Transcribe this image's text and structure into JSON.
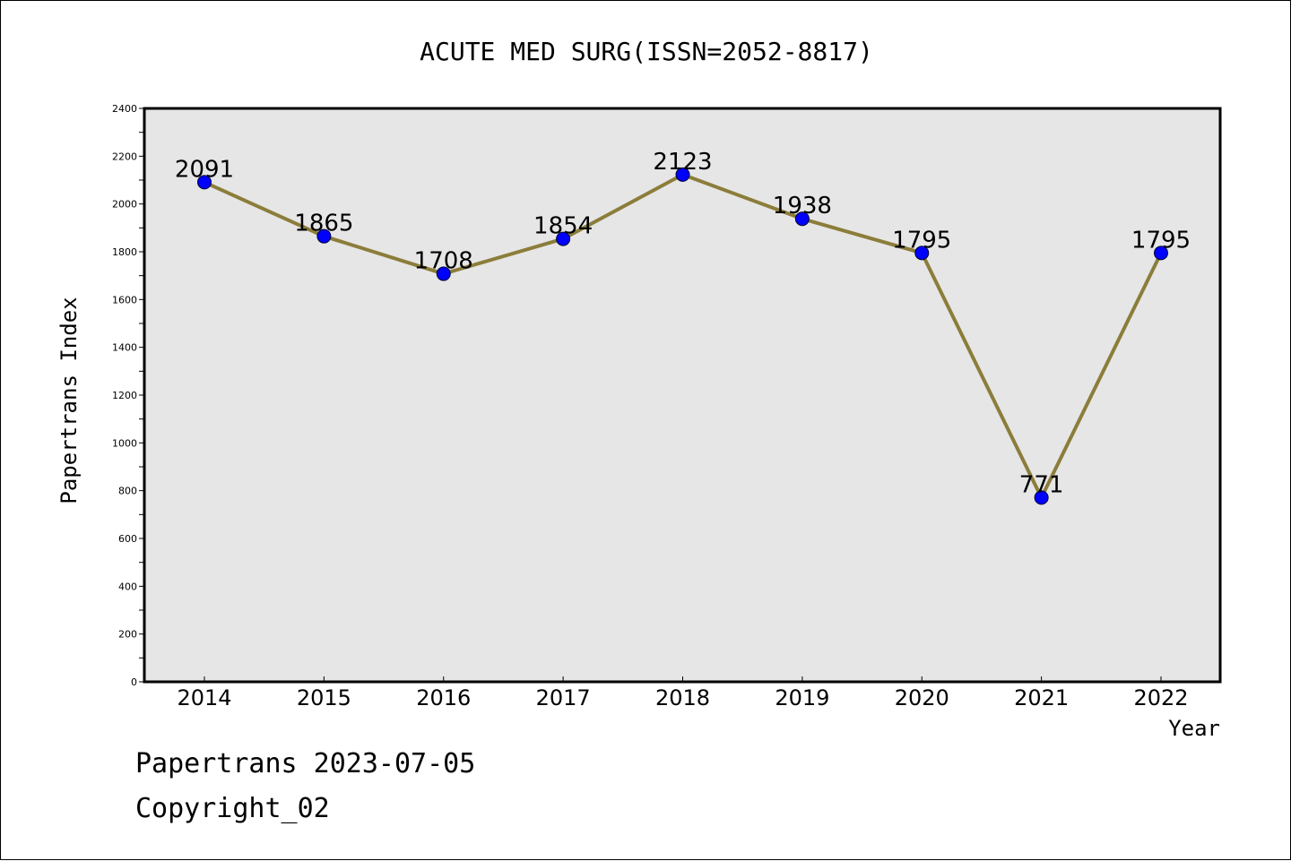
{
  "chart_data": {
    "type": "line",
    "title": "ACUTE MED SURG(ISSN=2052-8817)",
    "xlabel": "Year",
    "ylabel": "Papertrans Index",
    "categories": [
      "2014",
      "2015",
      "2016",
      "2017",
      "2018",
      "2019",
      "2020",
      "2021",
      "2022"
    ],
    "series": [
      {
        "values": [
          2091,
          1865,
          1708,
          1854,
          2123,
          1938,
          1795,
          771,
          1795
        ],
        "line_color": "#8b7d3a",
        "marker_color": "#0000ff"
      }
    ],
    "data_labels": [
      "2091",
      "1865",
      "1708",
      "1854",
      "2123",
      "1938",
      "1795",
      "771",
      "1795"
    ],
    "ylim": [
      0,
      2400
    ],
    "yticks": [
      0,
      200,
      400,
      600,
      800,
      1000,
      1200,
      1400,
      1600,
      1800,
      2000,
      2200,
      2400
    ],
    "ytick_labels": [
      "0",
      "200",
      "400",
      "600",
      "800",
      "1000",
      "1200",
      "1400",
      "1600",
      "1800",
      "2000",
      "2200",
      "2400"
    ],
    "plot_background": "#e6e6e6",
    "grid": false,
    "legend": "none"
  },
  "footer": {
    "line1": "Papertrans 2023-07-05",
    "line2": "Copyright_02"
  }
}
